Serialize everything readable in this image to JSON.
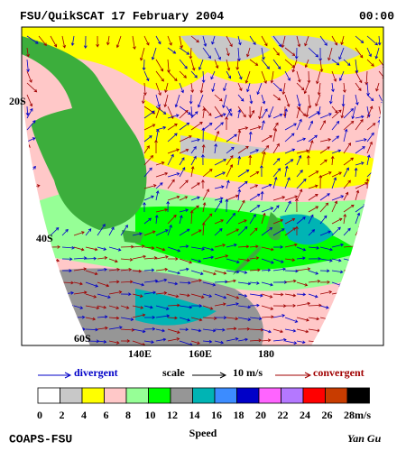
{
  "header": {
    "title": "FSU/QuikSCAT  17 February 2004",
    "time": "00:00"
  },
  "map": {
    "lat_labels": [
      "20S",
      "40S",
      "60S"
    ],
    "lon_labels": [
      "140E",
      "160E",
      "180"
    ]
  },
  "legend": {
    "divergent": "divergent",
    "scale": "scale",
    "scale_value": "10 m/s",
    "convergent": "convergent"
  },
  "colorbar": {
    "ticks": [
      0,
      2,
      4,
      6,
      8,
      10,
      12,
      14,
      16,
      18,
      20,
      22,
      24,
      26,
      28
    ],
    "unit": "m/s",
    "colors": [
      "#ffffff",
      "#c8c8c8",
      "#ffff00",
      "#ffc8c8",
      "#96ff96",
      "#00ff00",
      "#969696",
      "#00b4b4",
      "#3c8cff",
      "#0000c8",
      "#ff64ff",
      "#b478ff",
      "#ff0000",
      "#c83c00",
      "#000000"
    ],
    "label": "Speed"
  },
  "footer": {
    "left": "COAPS-FSU",
    "right": "Yan Gu"
  }
}
